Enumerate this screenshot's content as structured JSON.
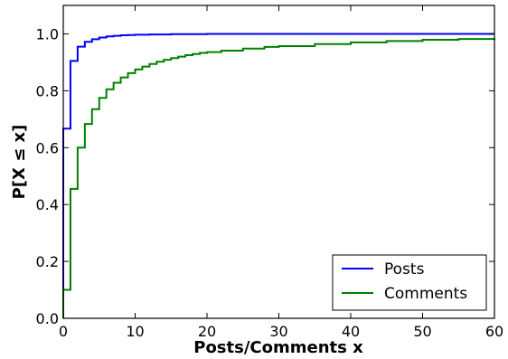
{
  "chart_data": {
    "type": "line",
    "step": true,
    "xlabel": "Posts/Comments x",
    "ylabel": "P[X ≤ x]",
    "xlim": [
      0,
      60
    ],
    "ylim": [
      0,
      1.1
    ],
    "xticks": [
      "0",
      "10",
      "20",
      "30",
      "40",
      "50",
      "60"
    ],
    "yticks": [
      "0.0",
      "0.2",
      "0.4",
      "0.6",
      "0.8",
      "1.0"
    ],
    "grid": false,
    "legend": {
      "placement": "bottom-right"
    },
    "series": [
      {
        "name": "Posts",
        "color": "#0000ff",
        "x": [
          0,
          1,
          2,
          3,
          4,
          5,
          6,
          7,
          8,
          9,
          10,
          12,
          15,
          20,
          30,
          40,
          50,
          60
        ],
        "y": [
          0.667,
          0.905,
          0.955,
          0.972,
          0.981,
          0.987,
          0.991,
          0.993,
          0.995,
          0.996,
          0.997,
          0.998,
          0.999,
          1.0,
          1.0,
          1.0,
          1.0,
          1.0
        ]
      },
      {
        "name": "Comments",
        "color": "#008000",
        "x": [
          0,
          1,
          2,
          3,
          4,
          5,
          6,
          7,
          8,
          9,
          10,
          11,
          12,
          13,
          14,
          15,
          16,
          17,
          18,
          19,
          20,
          22,
          25,
          28,
          30,
          35,
          40,
          45,
          50,
          55,
          60
        ],
        "y": [
          0.1,
          0.455,
          0.6,
          0.683,
          0.735,
          0.775,
          0.805,
          0.828,
          0.847,
          0.862,
          0.875,
          0.885,
          0.894,
          0.902,
          0.909,
          0.915,
          0.92,
          0.925,
          0.929,
          0.933,
          0.936,
          0.941,
          0.948,
          0.954,
          0.957,
          0.964,
          0.97,
          0.975,
          0.979,
          0.982,
          0.985
        ]
      }
    ]
  }
}
